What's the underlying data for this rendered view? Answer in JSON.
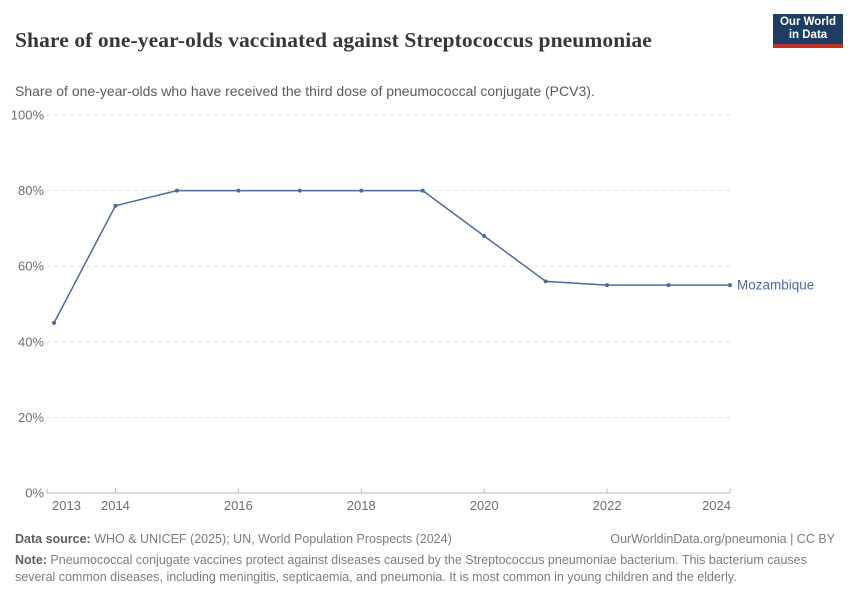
{
  "header": {
    "title": "Share of one-year-olds vaccinated against Streptococcus pneumoniae",
    "subtitle": "Share of one-year-olds who have received the third dose of pneumococcal conjugate (PCV3).",
    "logo": {
      "line1": "Our World",
      "line2": "in Data",
      "bg_color": "#1d3d63",
      "accent_color": "#c0322a"
    }
  },
  "chart_data": {
    "type": "line",
    "title": "Share of one-year-olds vaccinated against Streptococcus pneumoniae",
    "x": [
      2013,
      2014,
      2015,
      2016,
      2017,
      2018,
      2019,
      2020,
      2021,
      2022,
      2023,
      2024
    ],
    "series": [
      {
        "name": "Mozambique",
        "color": "#4c6a9c",
        "values": [
          45,
          76,
          80,
          80,
          80,
          80,
          80,
          68,
          56,
          55,
          55,
          55
        ]
      }
    ],
    "xlabel": "",
    "ylabel": "",
    "xlim": [
      2013,
      2024
    ],
    "ylim": [
      0,
      100
    ],
    "x_ticks": [
      2013,
      2014,
      2016,
      2018,
      2020,
      2022,
      2024
    ],
    "y_ticks": [
      0,
      20,
      40,
      60,
      80,
      100
    ],
    "y_tick_suffix": "%",
    "grid": "horizontal-dashed",
    "grid_color": "#dcdcdc",
    "axis_color": "#b7b7b7",
    "tick_label_color": "#6e6e6e",
    "legend_position": "end-of-line-label"
  },
  "footer": {
    "source_label": "Data source:",
    "source_text": " WHO & UNICEF (2025); UN, World Population Prospects (2024)",
    "link_text": "OurWorldinData.org/pneumonia | CC BY",
    "note_label": "Note:",
    "note_text": " Pneumococcal conjugate vaccines protect against diseases caused by the Streptococcus pneumoniae bacterium. This bacterium causes several common diseases, including meningitis, septicaemia, and pneumonia. It is most common in young children and the elderly."
  }
}
